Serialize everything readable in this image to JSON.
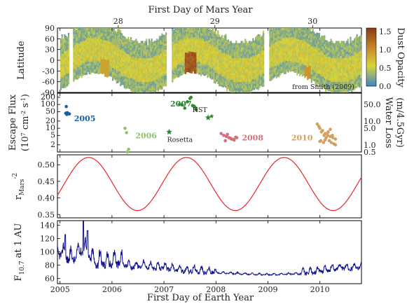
{
  "figure": {
    "top_axis_label": "First Day of Mars Year",
    "bottom_axis_label": "First Day of Earth Year",
    "mars_year_ticks": [
      "28",
      "29",
      "30"
    ],
    "earth_year_ticks": [
      "2005",
      "2006",
      "2007",
      "2008",
      "2009",
      "2010"
    ]
  },
  "chart_data": [
    {
      "type": "heatmap",
      "panel": "dust",
      "ylabel": "Latitude",
      "yticks": [
        "90",
        "60",
        "30",
        "0",
        "-30",
        "-60",
        "-90"
      ],
      "ylim": [
        -90,
        90
      ],
      "colorbar_label": "Dust Opacity",
      "colorbar_ticks": [
        "1.5",
        "1.0",
        "0.5",
        "0.0"
      ],
      "colorbar_range": [
        0.0,
        1.6
      ],
      "annotation": "from Smith (2009)",
      "colors": {
        "low": "#3b87c8",
        "mid": "#d8d43a",
        "high": "#8b3b15"
      }
    },
    {
      "type": "scatter",
      "panel": "escape",
      "ylabel": "Escape Flux",
      "ylabel_units": "(10",
      "ylabel_units_sup": "7",
      "ylabel_units_mid": " cm",
      "ylabel_units_sup2": "-2",
      "ylabel_units_end": " s",
      "ylabel_units_sup3": "-1",
      "ylabel_units_close": ")",
      "yticks": [
        "200",
        "100",
        "50",
        "20",
        "10",
        "5",
        "2"
      ],
      "y2label": "Water Loss",
      "y2label_units": "(m/4.5Gyr)",
      "y2ticks": [
        "50.0",
        "10.0",
        "5.0",
        "1.0",
        "0.5"
      ],
      "yscale": "log",
      "ylim": [
        1,
        300
      ],
      "series": [
        {
          "name": "2005",
          "color": "#1b5fa0",
          "x": [
            2005.12,
            2005.14,
            2005.16,
            2005.13,
            2005.18,
            2005.11
          ],
          "y": [
            82,
            45,
            41,
            38,
            40,
            43
          ]
        },
        {
          "name": "2006",
          "color": "#8fc26a",
          "x": [
            2006.25,
            2006.28,
            2006.32,
            2006.29
          ],
          "y": [
            10,
            6.5,
            1.3,
            1.0
          ]
        },
        {
          "name": "2007",
          "color": "#2e8b2e",
          "x": [
            2007.3,
            2007.35,
            2007.45,
            2007.5,
            2007.55,
            2007.6,
            2007.62,
            2007.4,
            2007.52,
            2007.58
          ],
          "y": [
            100,
            95,
            130,
            180,
            90,
            75,
            60,
            70,
            200,
            85
          ]
        },
        {
          "name": "2008",
          "color": "#d46f78",
          "x": [
            2008.1,
            2008.15,
            2008.2,
            2008.25,
            2008.3,
            2008.35,
            2008.4,
            2008.18,
            2008.22,
            2008.28,
            2008.33,
            2008.38
          ],
          "y": [
            6,
            5,
            4.5,
            4,
            3.5,
            3.2,
            4,
            3,
            5.5,
            3.8,
            3.4,
            4.2
          ]
        },
        {
          "name": "2010",
          "color": "#d4a060",
          "x": [
            2009.95,
            2010.0,
            2010.05,
            2010.1,
            2010.15,
            2010.2,
            2010.25,
            2010.3,
            2009.98,
            2010.03,
            2010.08,
            2010.12,
            2010.18,
            2010.22,
            2010.27,
            2010.02,
            2010.07,
            2010.14,
            2010.2,
            2010.0,
            2010.1,
            2010.16,
            2010.24,
            2010.3
          ],
          "y": [
            15,
            10,
            8,
            6,
            5,
            4.5,
            4,
            3.5,
            12,
            7,
            5,
            4,
            3,
            2.5,
            2.2,
            3,
            2.5,
            6,
            9,
            2.8,
            3.2,
            7,
            5,
            2
          ]
        }
      ],
      "annotations": [
        {
          "text": "Rosetta",
          "color": "#2e8b2e",
          "x": 2007.1,
          "y": 7
        },
        {
          "text": "HST",
          "color": "#2e8b2e",
          "x": 2007.85,
          "y": 28
        }
      ]
    },
    {
      "type": "line",
      "panel": "rmars",
      "ylabel": "r",
      "ylabel_sub": "Mars",
      "ylabel_sup": "-2",
      "yticks": [
        "0.50",
        "0.45",
        "0.40",
        "0.35"
      ],
      "ylim": [
        0.34,
        0.53
      ],
      "color": "#e8262a",
      "period_years": 1.881,
      "max_value": 0.522,
      "min_value": 0.362,
      "first_max_x": 2005.55
    },
    {
      "type": "line",
      "panel": "f107",
      "ylabel": "F",
      "ylabel_sub": "10.7",
      "ylabel_end": " at 1 AU",
      "yticks": [
        "140",
        "120",
        "100",
        "80",
        "60"
      ],
      "ylim": [
        52,
        147
      ],
      "color": "#11138a",
      "x": [
        2005.0,
        2005.1,
        2005.2,
        2005.3,
        2005.4,
        2005.5,
        2005.6,
        2005.7,
        2005.8,
        2005.9,
        2006.0,
        2006.2,
        2006.4,
        2006.6,
        2006.8,
        2007.0,
        2007.2,
        2007.4,
        2007.6,
        2007.8,
        2008.0,
        2008.3,
        2008.6,
        2009.0,
        2009.4,
        2009.8,
        2010.0,
        2010.2,
        2010.4,
        2010.6,
        2010.8
      ],
      "y": [
        95,
        90,
        85,
        88,
        100,
        98,
        85,
        80,
        82,
        78,
        82,
        80,
        76,
        78,
        74,
        75,
        72,
        70,
        70,
        68,
        68,
        67,
        66,
        65,
        66,
        67,
        70,
        72,
        75,
        74,
        76
      ]
    }
  ]
}
